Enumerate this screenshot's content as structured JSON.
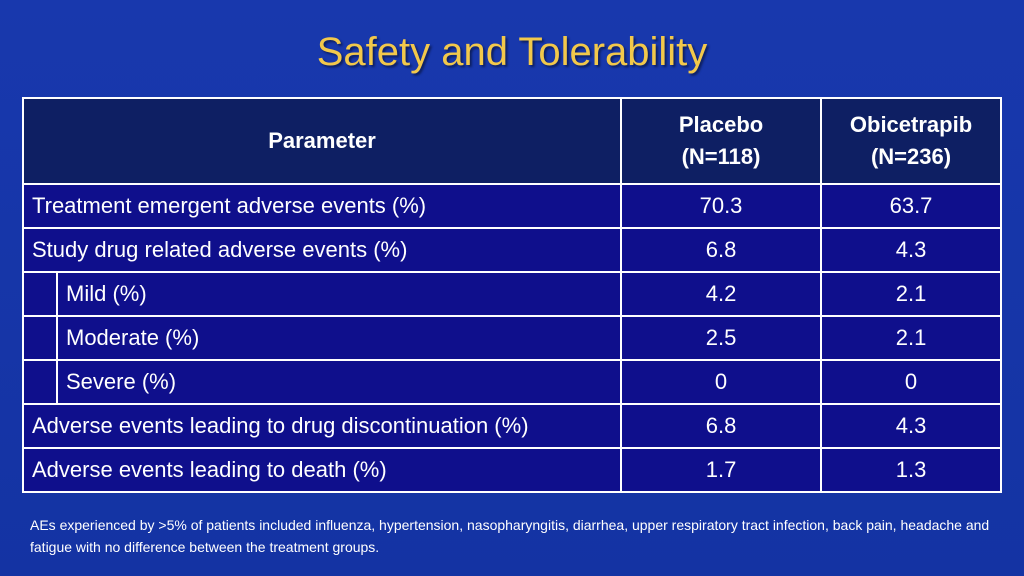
{
  "title": "Safety and Tolerability",
  "table": {
    "headers": {
      "parameter": "Parameter",
      "placebo": [
        "Placebo",
        "(N=118)"
      ],
      "obicetrapib": [
        "Obicetrapib",
        "(N=236)"
      ]
    },
    "rows": [
      {
        "label": "Treatment emergent adverse events (%)",
        "placebo": "70.3",
        "obicetrapib": "63.7"
      },
      {
        "label": "Study drug related adverse events (%)",
        "placebo": "6.8",
        "obicetrapib": "4.3"
      },
      {
        "label": "Mild (%)",
        "placebo": "4.2",
        "obicetrapib": "2.1"
      },
      {
        "label": "Moderate (%)",
        "placebo": "2.5",
        "obicetrapib": "2.1"
      },
      {
        "label": "Severe (%)",
        "placebo": "0",
        "obicetrapib": "0"
      },
      {
        "label": "Adverse events leading to drug discontinuation (%)",
        "placebo": "6.8",
        "obicetrapib": "4.3"
      },
      {
        "label": "Adverse events leading to death (%)",
        "placebo": "1.7",
        "obicetrapib": "1.3"
      }
    ]
  },
  "footnote": "AEs experienced by >5% of patients included influenza, hypertension, nasopharyngitis, diarrhea, upper respiratory tract infection, back pain, headache and fatigue with no difference between the treatment groups.",
  "colors": {
    "background": "#1535a6",
    "title": "#f2c84b",
    "header_fill": "#0e1f63",
    "cell_fill": "#0f0f8c",
    "border": "#ffffff"
  }
}
